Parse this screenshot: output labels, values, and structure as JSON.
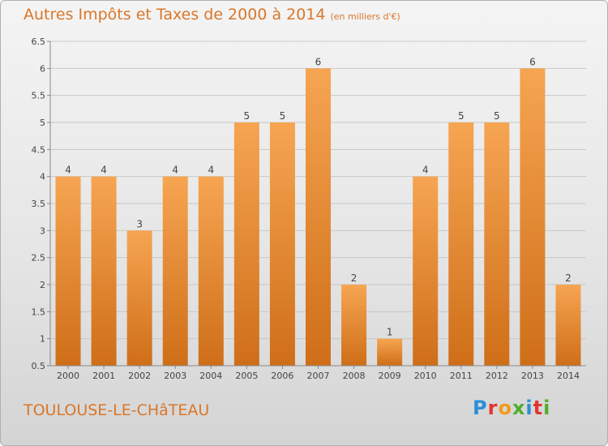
{
  "title": "Autres Impôts et Taxes de 2000 à 2014",
  "unit": "(en milliers d'€)",
  "place": "TOULOUSE-LE-CHâTEAU",
  "logo": {
    "letters": [
      "P",
      "r",
      "o",
      "x",
      "i",
      "t",
      "i"
    ],
    "colors": [
      "#2b8fd6",
      "#e2352f",
      "#f29a18",
      "#4fae2e",
      "#2b8fd6",
      "#e2352f",
      "#4fae2e"
    ]
  },
  "colors": {
    "bar_top": "#f6a552",
    "bar_bottom": "#cf6e18",
    "accent": "#d9772a"
  },
  "chart_data": {
    "type": "bar",
    "categories": [
      "2000",
      "2001",
      "2002",
      "2003",
      "2004",
      "2005",
      "2006",
      "2007",
      "2008",
      "2009",
      "2010",
      "2011",
      "2012",
      "2013",
      "2014"
    ],
    "values": [
      4,
      4,
      3,
      4,
      4,
      5,
      5,
      6,
      2,
      1,
      4,
      5,
      5,
      6,
      2
    ],
    "ylim": [
      0.5,
      6.5
    ],
    "yticks": [
      "0.5",
      "1",
      "1.5",
      "2",
      "2.5",
      "3",
      "3.5",
      "4",
      "4.5",
      "5",
      "5.5",
      "6",
      "6.5"
    ],
    "grid": true
  }
}
